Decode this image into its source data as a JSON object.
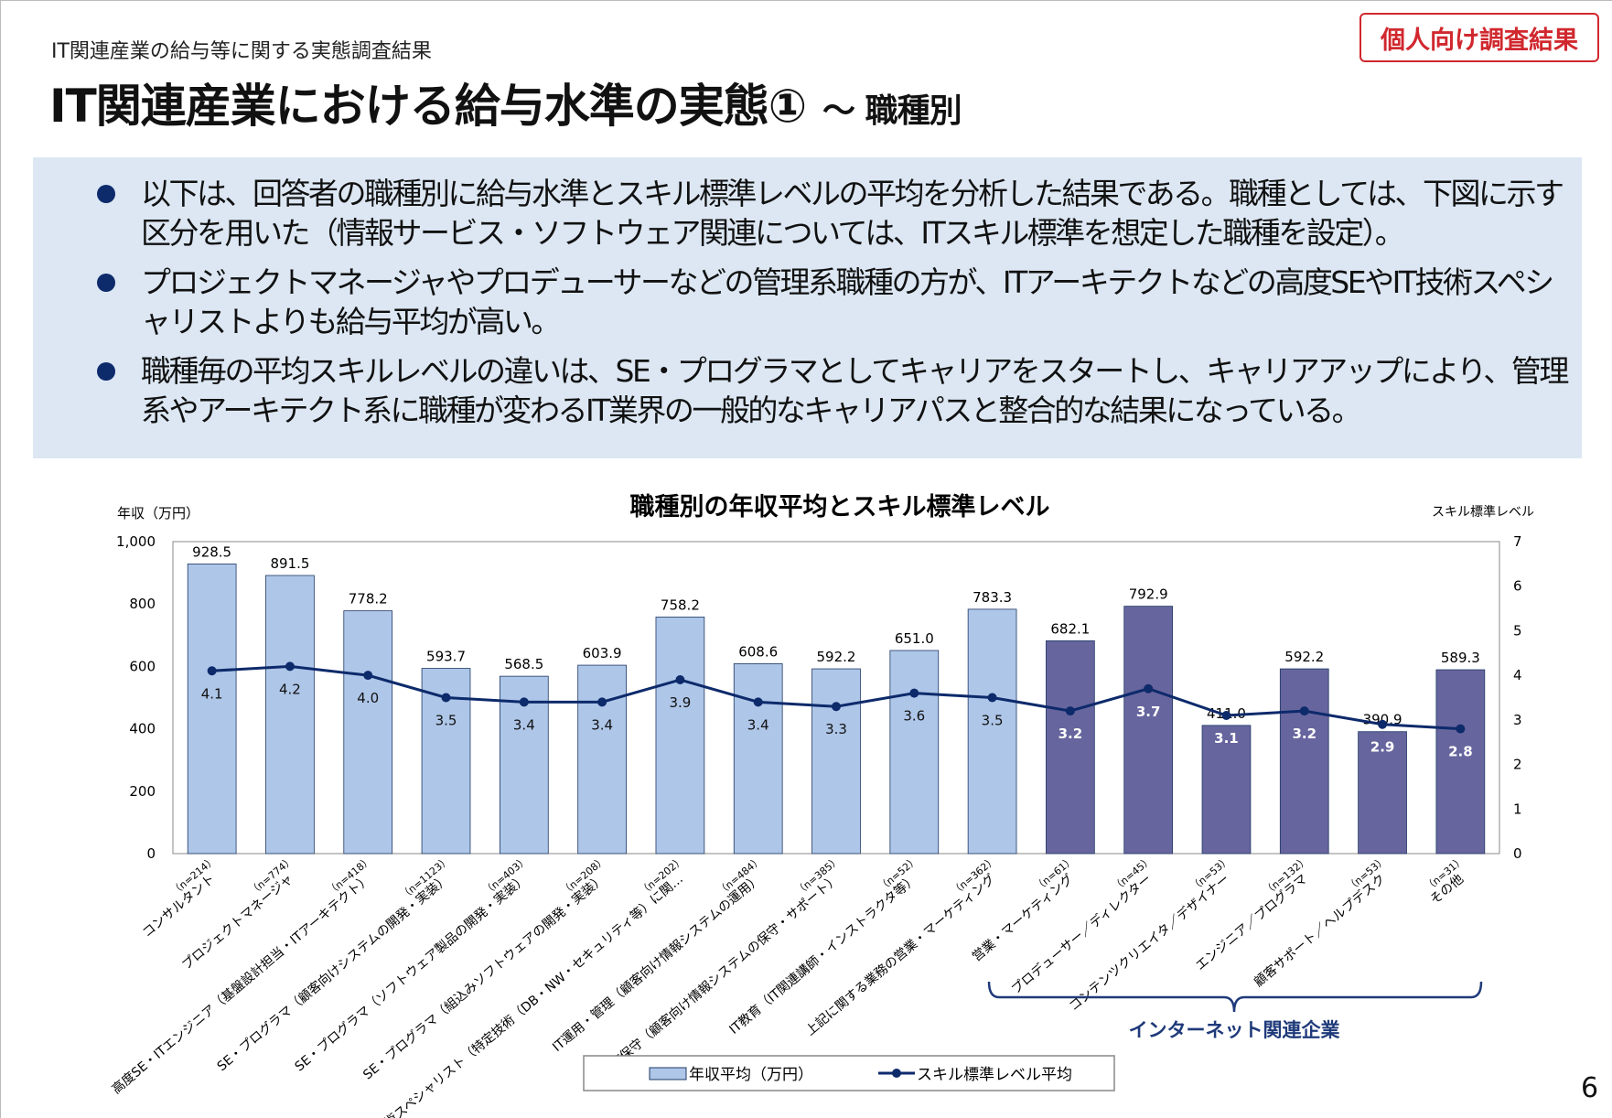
{
  "header": {
    "subtitle": "IT関連産業の給与等に関する実態調査結果",
    "title": "IT関連産業における給与水準の実態①",
    "title_suffix": "～ 職種別",
    "badge": "個人向け調査結果"
  },
  "summary": {
    "bullets": [
      "以下は、回答者の職種別に給与水準とスキル標準レベルの平均を分析した結果である。職種としては、下図に示す区分を用いた（情報サービス・ソフトウェア関連については、ITスキル標準を想定した職種を設定）。",
      "プロジェクトマネージャやプロデューサーなどの管理系職種の方が、ITアーキテクトなどの高度SEやIT技術スペシャリストよりも給与平均が高い。",
      "職種毎の平均スキルレベルの違いは、SE・プログラマとしてキャリアをスタートし、キャリアアップにより、管理系やアーキテクト系に職種が変わるIT業界の一般的なキャリアパスと整合的な結果になっている。"
    ]
  },
  "page_number": "6",
  "chart_data": {
    "type": "bar+line",
    "title": "職種別の年収平均とスキル標準レベル",
    "ylabel_left": "年収（万円）",
    "ylabel_right": "スキル標準レベル",
    "ylim_left": [
      0,
      1000
    ],
    "yticks_left": [
      "0",
      "200",
      "400",
      "600",
      "800",
      "1,000"
    ],
    "ylim_right": [
      0,
      7
    ],
    "yticks_right": [
      "0",
      "1",
      "2",
      "3",
      "4",
      "5",
      "6",
      "7"
    ],
    "grid": false,
    "legend_placement": "bottom",
    "categories": [
      {
        "name": "コンサルタント",
        "n": "（n=214）"
      },
      {
        "name": "プロジェクトマネージャ",
        "n": "（n=774）"
      },
      {
        "name": "高度SE・ITエンジニア（基盤設計担当・ITアーキテクト）",
        "n": "（n=418）"
      },
      {
        "name": "SE・プログラマ（顧客向けシステムの開発・実装）",
        "n": "（n=1123）"
      },
      {
        "name": "SE・プログラマ（ソフトウェア製品の開発・実装）",
        "n": "（n=403）"
      },
      {
        "name": "SE・プログラマ（組込みソフトウェアの開発・実装）",
        "n": "（n=208）"
      },
      {
        "name": "IT技術スペシャリスト（特定技術（DB・NW・セキュリティ等）に関…",
        "n": "（n=202）"
      },
      {
        "name": "IT運用・管理（顧客向け情報システムの運用）",
        "n": "（n=484）"
      },
      {
        "name": "IT保守（顧客向け情報システムの保守・サポート）",
        "n": "（n=385）"
      },
      {
        "name": "IT教育（IT関連講師・インストラクタ等）",
        "n": "（n=52）"
      },
      {
        "name": "上記に関する業務の営業・マーケティング",
        "n": "（n=362）"
      },
      {
        "name": "営業・マーケティング",
        "n": "（n=61）"
      },
      {
        "name": "プロデューサー／ディレクター",
        "n": "（n=45）"
      },
      {
        "name": "コンテンツクリエイタ／デザイナー",
        "n": "（n=53）"
      },
      {
        "name": "エンジニア／プログラマ",
        "n": "（n=132）"
      },
      {
        "name": "顧客サポート／ヘルプデスク",
        "n": "（n=53）"
      },
      {
        "name": "その他",
        "n": "（n=31）"
      }
    ],
    "series": [
      {
        "name": "年収平均（万円）",
        "type": "bar",
        "axis": "left",
        "values": [
          928.5,
          891.5,
          778.2,
          593.7,
          568.5,
          603.9,
          758.2,
          608.6,
          592.2,
          651.0,
          783.3,
          682.1,
          792.9,
          411.0,
          592.2,
          390.9,
          589.3
        ],
        "labels": [
          "928.5",
          "891.5",
          "778.2",
          "593.7",
          "568.5",
          "603.9",
          "758.2",
          "608.6",
          "592.2",
          "651.0",
          "783.3",
          "682.1",
          "792.9",
          "411.0",
          "592.2",
          "390.9",
          "589.3"
        ]
      },
      {
        "name": "スキル標準レベル平均",
        "type": "line",
        "axis": "right",
        "values": [
          4.1,
          4.2,
          4.0,
          3.5,
          3.4,
          3.4,
          3.9,
          3.4,
          3.3,
          3.6,
          3.5,
          3.2,
          3.7,
          3.1,
          3.2,
          2.9,
          2.8
        ],
        "labels": [
          "4.1",
          "4.2",
          "4.0",
          "3.5",
          "3.4",
          "3.4",
          "3.9",
          "3.4",
          "3.3",
          "3.6",
          "3.5",
          "3.2",
          "3.7",
          "3.1",
          "3.2",
          "2.9",
          "2.8"
        ]
      }
    ],
    "group_annotation": {
      "label": "インターネット関連企業",
      "from_index": 11,
      "to_index": 16
    },
    "colors": {
      "bar_it": "#aec6e8",
      "bar_internet": "#67659e",
      "bar_border": "#1f3864",
      "line": "#0d2a6b"
    }
  }
}
